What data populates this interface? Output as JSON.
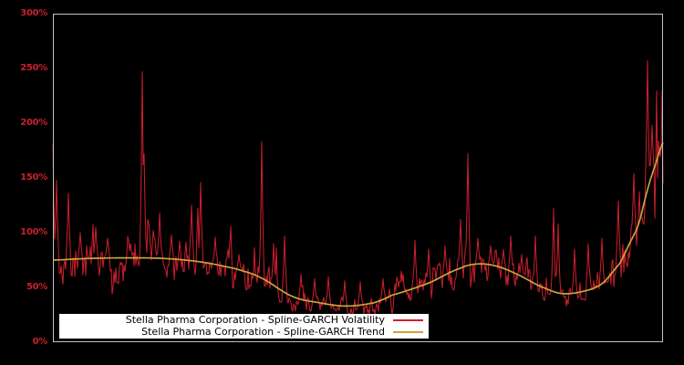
{
  "chart_data": {
    "type": "line",
    "background": "#000000",
    "plot_border_color": "#c3c3c3",
    "x_axis": {
      "tick_labels_visible": false
    },
    "y_axis": {
      "min": 0,
      "max": 300,
      "step": 50,
      "tick_labels": [
        "0%",
        "50%",
        "100%",
        "150%",
        "200%",
        "250%",
        "300%"
      ],
      "tick_color": "#cc1f2e",
      "unit": "%"
    },
    "legend": {
      "position": "bottom-inside",
      "background": "#ffffff",
      "text_color": "#000000"
    },
    "series": [
      {
        "name": "Stella Pharma Corporation - Spline-GARCH Volatility",
        "color": "#ce1f2d",
        "style": "noisy-line",
        "point_count": 670,
        "noise": {
          "seed": 1337,
          "sigma": 0.16,
          "phi": 0.58,
          "jitter": 0.06,
          "bias": -0.05,
          "min": 26
        },
        "spikes": [
          [
            0.0,
            181
          ],
          [
            0.006,
            148
          ],
          [
            0.025,
            136
          ],
          [
            0.045,
            100
          ],
          [
            0.07,
            105
          ],
          [
            0.09,
            95
          ],
          [
            0.127,
            90
          ],
          [
            0.146,
            247
          ],
          [
            0.15,
            172
          ],
          [
            0.175,
            118
          ],
          [
            0.194,
            98
          ],
          [
            0.227,
            125
          ],
          [
            0.242,
            146
          ],
          [
            0.266,
            96
          ],
          [
            0.287,
            85
          ],
          [
            0.305,
            80
          ],
          [
            0.342,
            183
          ],
          [
            0.362,
            90
          ],
          [
            0.38,
            97
          ],
          [
            0.407,
            62
          ],
          [
            0.429,
            58
          ],
          [
            0.451,
            60
          ],
          [
            0.478,
            56
          ],
          [
            0.504,
            55
          ],
          [
            0.541,
            58
          ],
          [
            0.571,
            65
          ],
          [
            0.593,
            93
          ],
          [
            0.616,
            85
          ],
          [
            0.643,
            88
          ],
          [
            0.668,
            112
          ],
          [
            0.68,
            172
          ],
          [
            0.697,
            95
          ],
          [
            0.718,
            88
          ],
          [
            0.738,
            85
          ],
          [
            0.75,
            97
          ],
          [
            0.768,
            80
          ],
          [
            0.791,
            97
          ],
          [
            0.821,
            122
          ],
          [
            0.828,
            108
          ],
          [
            0.855,
            85
          ],
          [
            0.877,
            90
          ],
          [
            0.9,
            95
          ],
          [
            0.927,
            129
          ],
          [
            0.952,
            154
          ],
          [
            0.963,
            115
          ],
          [
            0.975,
            257
          ],
          [
            0.982,
            198
          ],
          [
            0.991,
            150
          ],
          [
            0.997,
            160
          ],
          [
            1.0,
            145
          ]
        ]
      },
      {
        "name": "Stella Pharma Corporation - Spline-GARCH Trend",
        "color": "#c9a43c",
        "style": "smooth-spline",
        "control_points": [
          [
            0.0,
            75
          ],
          [
            0.06,
            76.5
          ],
          [
            0.12,
            77
          ],
          [
            0.18,
            76.5
          ],
          [
            0.24,
            73.5
          ],
          [
            0.3,
            67
          ],
          [
            0.34,
            59
          ],
          [
            0.392,
            42
          ],
          [
            0.437,
            36
          ],
          [
            0.481,
            33
          ],
          [
            0.526,
            36
          ],
          [
            0.556,
            43
          ],
          [
            0.616,
            54
          ],
          [
            0.668,
            67.5
          ],
          [
            0.698,
            71.5
          ],
          [
            0.73,
            69
          ],
          [
            0.765,
            61
          ],
          [
            0.795,
            52
          ],
          [
            0.833,
            44.5
          ],
          [
            0.87,
            46.5
          ],
          [
            0.9,
            53.5
          ],
          [
            0.93,
            72.5
          ],
          [
            0.945,
            90
          ],
          [
            0.96,
            108
          ],
          [
            0.975,
            140
          ],
          [
            0.988,
            163
          ],
          [
            1.0,
            182
          ]
        ]
      }
    ]
  }
}
